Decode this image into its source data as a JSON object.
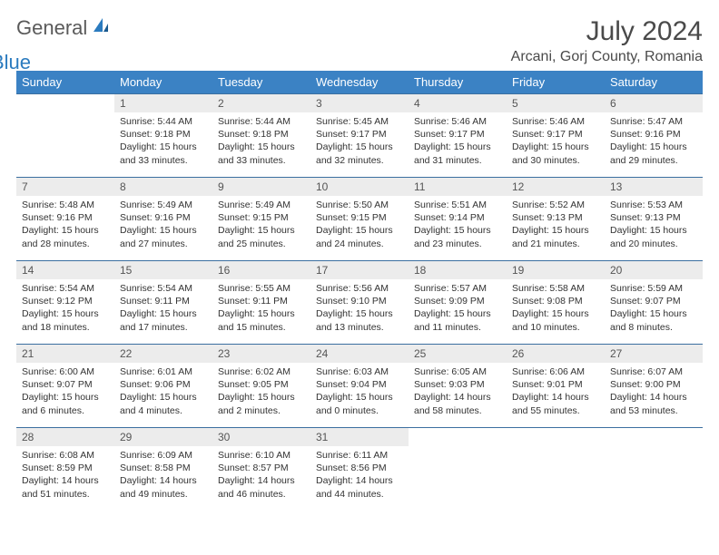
{
  "logo": {
    "general": "General",
    "blue": "Blue"
  },
  "title": "July 2024",
  "location": "Arcani, Gorj County, Romania",
  "colors": {
    "header_bg": "#3b82c4",
    "header_text": "#ffffff",
    "daynum_bg": "#ececec",
    "row_border": "#3b6fa0",
    "logo_gray": "#5a5a5a",
    "logo_blue": "#2b7bbf",
    "body_text": "#333333"
  },
  "weekdays": [
    "Sunday",
    "Monday",
    "Tuesday",
    "Wednesday",
    "Thursday",
    "Friday",
    "Saturday"
  ],
  "weeks": [
    [
      null,
      {
        "n": "1",
        "sr": "Sunrise: 5:44 AM",
        "ss": "Sunset: 9:18 PM",
        "d1": "Daylight: 15 hours",
        "d2": "and 33 minutes."
      },
      {
        "n": "2",
        "sr": "Sunrise: 5:44 AM",
        "ss": "Sunset: 9:18 PM",
        "d1": "Daylight: 15 hours",
        "d2": "and 33 minutes."
      },
      {
        "n": "3",
        "sr": "Sunrise: 5:45 AM",
        "ss": "Sunset: 9:17 PM",
        "d1": "Daylight: 15 hours",
        "d2": "and 32 minutes."
      },
      {
        "n": "4",
        "sr": "Sunrise: 5:46 AM",
        "ss": "Sunset: 9:17 PM",
        "d1": "Daylight: 15 hours",
        "d2": "and 31 minutes."
      },
      {
        "n": "5",
        "sr": "Sunrise: 5:46 AM",
        "ss": "Sunset: 9:17 PM",
        "d1": "Daylight: 15 hours",
        "d2": "and 30 minutes."
      },
      {
        "n": "6",
        "sr": "Sunrise: 5:47 AM",
        "ss": "Sunset: 9:16 PM",
        "d1": "Daylight: 15 hours",
        "d2": "and 29 minutes."
      }
    ],
    [
      {
        "n": "7",
        "sr": "Sunrise: 5:48 AM",
        "ss": "Sunset: 9:16 PM",
        "d1": "Daylight: 15 hours",
        "d2": "and 28 minutes."
      },
      {
        "n": "8",
        "sr": "Sunrise: 5:49 AM",
        "ss": "Sunset: 9:16 PM",
        "d1": "Daylight: 15 hours",
        "d2": "and 27 minutes."
      },
      {
        "n": "9",
        "sr": "Sunrise: 5:49 AM",
        "ss": "Sunset: 9:15 PM",
        "d1": "Daylight: 15 hours",
        "d2": "and 25 minutes."
      },
      {
        "n": "10",
        "sr": "Sunrise: 5:50 AM",
        "ss": "Sunset: 9:15 PM",
        "d1": "Daylight: 15 hours",
        "d2": "and 24 minutes."
      },
      {
        "n": "11",
        "sr": "Sunrise: 5:51 AM",
        "ss": "Sunset: 9:14 PM",
        "d1": "Daylight: 15 hours",
        "d2": "and 23 minutes."
      },
      {
        "n": "12",
        "sr": "Sunrise: 5:52 AM",
        "ss": "Sunset: 9:13 PM",
        "d1": "Daylight: 15 hours",
        "d2": "and 21 minutes."
      },
      {
        "n": "13",
        "sr": "Sunrise: 5:53 AM",
        "ss": "Sunset: 9:13 PM",
        "d1": "Daylight: 15 hours",
        "d2": "and 20 minutes."
      }
    ],
    [
      {
        "n": "14",
        "sr": "Sunrise: 5:54 AM",
        "ss": "Sunset: 9:12 PM",
        "d1": "Daylight: 15 hours",
        "d2": "and 18 minutes."
      },
      {
        "n": "15",
        "sr": "Sunrise: 5:54 AM",
        "ss": "Sunset: 9:11 PM",
        "d1": "Daylight: 15 hours",
        "d2": "and 17 minutes."
      },
      {
        "n": "16",
        "sr": "Sunrise: 5:55 AM",
        "ss": "Sunset: 9:11 PM",
        "d1": "Daylight: 15 hours",
        "d2": "and 15 minutes."
      },
      {
        "n": "17",
        "sr": "Sunrise: 5:56 AM",
        "ss": "Sunset: 9:10 PM",
        "d1": "Daylight: 15 hours",
        "d2": "and 13 minutes."
      },
      {
        "n": "18",
        "sr": "Sunrise: 5:57 AM",
        "ss": "Sunset: 9:09 PM",
        "d1": "Daylight: 15 hours",
        "d2": "and 11 minutes."
      },
      {
        "n": "19",
        "sr": "Sunrise: 5:58 AM",
        "ss": "Sunset: 9:08 PM",
        "d1": "Daylight: 15 hours",
        "d2": "and 10 minutes."
      },
      {
        "n": "20",
        "sr": "Sunrise: 5:59 AM",
        "ss": "Sunset: 9:07 PM",
        "d1": "Daylight: 15 hours",
        "d2": "and 8 minutes."
      }
    ],
    [
      {
        "n": "21",
        "sr": "Sunrise: 6:00 AM",
        "ss": "Sunset: 9:07 PM",
        "d1": "Daylight: 15 hours",
        "d2": "and 6 minutes."
      },
      {
        "n": "22",
        "sr": "Sunrise: 6:01 AM",
        "ss": "Sunset: 9:06 PM",
        "d1": "Daylight: 15 hours",
        "d2": "and 4 minutes."
      },
      {
        "n": "23",
        "sr": "Sunrise: 6:02 AM",
        "ss": "Sunset: 9:05 PM",
        "d1": "Daylight: 15 hours",
        "d2": "and 2 minutes."
      },
      {
        "n": "24",
        "sr": "Sunrise: 6:03 AM",
        "ss": "Sunset: 9:04 PM",
        "d1": "Daylight: 15 hours",
        "d2": "and 0 minutes."
      },
      {
        "n": "25",
        "sr": "Sunrise: 6:05 AM",
        "ss": "Sunset: 9:03 PM",
        "d1": "Daylight: 14 hours",
        "d2": "and 58 minutes."
      },
      {
        "n": "26",
        "sr": "Sunrise: 6:06 AM",
        "ss": "Sunset: 9:01 PM",
        "d1": "Daylight: 14 hours",
        "d2": "and 55 minutes."
      },
      {
        "n": "27",
        "sr": "Sunrise: 6:07 AM",
        "ss": "Sunset: 9:00 PM",
        "d1": "Daylight: 14 hours",
        "d2": "and 53 minutes."
      }
    ],
    [
      {
        "n": "28",
        "sr": "Sunrise: 6:08 AM",
        "ss": "Sunset: 8:59 PM",
        "d1": "Daylight: 14 hours",
        "d2": "and 51 minutes."
      },
      {
        "n": "29",
        "sr": "Sunrise: 6:09 AM",
        "ss": "Sunset: 8:58 PM",
        "d1": "Daylight: 14 hours",
        "d2": "and 49 minutes."
      },
      {
        "n": "30",
        "sr": "Sunrise: 6:10 AM",
        "ss": "Sunset: 8:57 PM",
        "d1": "Daylight: 14 hours",
        "d2": "and 46 minutes."
      },
      {
        "n": "31",
        "sr": "Sunrise: 6:11 AM",
        "ss": "Sunset: 8:56 PM",
        "d1": "Daylight: 14 hours",
        "d2": "and 44 minutes."
      },
      null,
      null,
      null
    ]
  ]
}
